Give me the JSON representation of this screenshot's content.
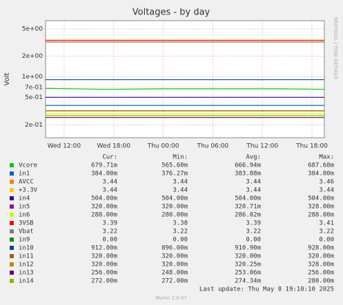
{
  "chart_data": {
    "type": "line",
    "title": "Voltages - by day",
    "y_label": "Volt",
    "log_scale": true,
    "grid": true,
    "side_note": "RRDTOOL / TOBI OETIKER",
    "x": [
      9.75,
      17,
      24,
      31,
      38,
      43.5
    ],
    "xlim": [
      9.75,
      43.5
    ],
    "xticks": [
      {
        "value": 12,
        "label": "Wed 12:00"
      },
      {
        "value": 18,
        "label": "Wed 18:00"
      },
      {
        "value": 24,
        "label": "Thu 00:00"
      },
      {
        "value": 30,
        "label": "Thu 06:00"
      },
      {
        "value": 36,
        "label": "Thu 12:00"
      },
      {
        "value": 42,
        "label": "Thu 18:00"
      }
    ],
    "ylim": [
      0.13,
      6.6
    ],
    "yticks": [
      {
        "value": 5,
        "label": "5e+00"
      },
      {
        "value": 2,
        "label": "2e+00"
      },
      {
        "value": 1,
        "label": "1e+00"
      },
      {
        "value": 0.7,
        "label": "7e-01"
      },
      {
        "value": 0.5,
        "label": "5e-01"
      },
      {
        "value": 0.2,
        "label": "2e-01"
      }
    ],
    "stats_headers": [
      "Cur:",
      "Min:",
      "Avg:",
      "Max:"
    ],
    "series": [
      {
        "name": "Vcore",
        "color": "#00cc00",
        "values": [
          0.68,
          0.66,
          0.67,
          0.67,
          0.67,
          0.66
        ],
        "stats": [
          "679.71m",
          "565.60m",
          "666.94m",
          "687.68m"
        ]
      },
      {
        "name": "in1",
        "color": "#0066b3",
        "values": [
          0.384,
          0.384,
          0.384,
          0.384,
          0.384,
          0.384
        ],
        "stats": [
          "384.00m",
          "376.27m",
          "383.88m",
          "384.00m"
        ]
      },
      {
        "name": "AVCC",
        "color": "#ff8000",
        "values": [
          3.44,
          3.44,
          3.44,
          3.44,
          3.44,
          3.44
        ],
        "stats": [
          "3.44",
          "3.44",
          "3.44",
          "3.46"
        ]
      },
      {
        "name": "+3.3V",
        "color": "#ffcc00",
        "values": [
          3.44,
          3.44,
          3.44,
          3.44,
          3.44,
          3.44
        ],
        "stats": [
          "3.44",
          "3.44",
          "3.44",
          "3.44"
        ]
      },
      {
        "name": "in4",
        "color": "#330099",
        "values": [
          0.504,
          0.504,
          0.504,
          0.504,
          0.504,
          0.504
        ],
        "stats": [
          "504.00m",
          "504.00m",
          "504.00m",
          "504.00m"
        ]
      },
      {
        "name": "in5",
        "color": "#990099",
        "values": [
          0.32,
          0.32,
          0.32,
          0.32,
          0.32,
          0.32
        ],
        "stats": [
          "320.00m",
          "320.00m",
          "320.71m",
          "328.00m"
        ]
      },
      {
        "name": "in6",
        "color": "#ccff00",
        "values": [
          0.288,
          0.288,
          0.288,
          0.288,
          0.288,
          0.288
        ],
        "stats": [
          "288.00m",
          "280.00m",
          "286.02m",
          "288.00m"
        ]
      },
      {
        "name": "3VSB",
        "color": "#ff0000",
        "values": [
          3.39,
          3.39,
          3.39,
          3.39,
          3.39,
          3.39
        ],
        "stats": [
          "3.39",
          "3.38",
          "3.39",
          "3.41"
        ]
      },
      {
        "name": "Vbat",
        "color": "#808080",
        "values": [
          3.22,
          3.22,
          3.22,
          3.22,
          3.22,
          3.22
        ],
        "stats": [
          "3.22",
          "3.22",
          "3.22",
          "3.22"
        ]
      },
      {
        "name": "in9",
        "color": "#008f00",
        "values": [
          null,
          null,
          null,
          null,
          null,
          null
        ],
        "stats": [
          "0.00",
          "0.00",
          "0.00",
          "0.00"
        ]
      },
      {
        "name": "in10",
        "color": "#00487d",
        "values": [
          0.912,
          0.912,
          0.912,
          0.912,
          0.912,
          0.912
        ],
        "stats": [
          "912.00m",
          "896.00m",
          "910.90m",
          "928.00m"
        ]
      },
      {
        "name": "in11",
        "color": "#b35a00",
        "values": [
          0.32,
          0.32,
          0.32,
          0.32,
          0.32,
          0.32
        ],
        "stats": [
          "320.00m",
          "320.00m",
          "320.00m",
          "320.00m"
        ]
      },
      {
        "name": "in12",
        "color": "#b38f00",
        "values": [
          0.32,
          0.32,
          0.32,
          0.32,
          0.32,
          0.32
        ],
        "stats": [
          "320.00m",
          "320.00m",
          "320.25m",
          "328.00m"
        ]
      },
      {
        "name": "in13",
        "color": "#6b006b",
        "values": [
          0.256,
          0.256,
          0.256,
          0.256,
          0.256,
          0.256
        ],
        "stats": [
          "256.00m",
          "248.00m",
          "253.06m",
          "256.00m"
        ]
      },
      {
        "name": "in14",
        "color": "#8fb300",
        "values": [
          0.272,
          0.272,
          0.272,
          0.272,
          0.272,
          0.272
        ],
        "stats": [
          "272.00m",
          "272.00m",
          "274.34m",
          "280.00m"
        ]
      }
    ],
    "last_update": "Last update: Thu May  8 19:10:10 2025",
    "footer": "Munin 2.0.67"
  }
}
